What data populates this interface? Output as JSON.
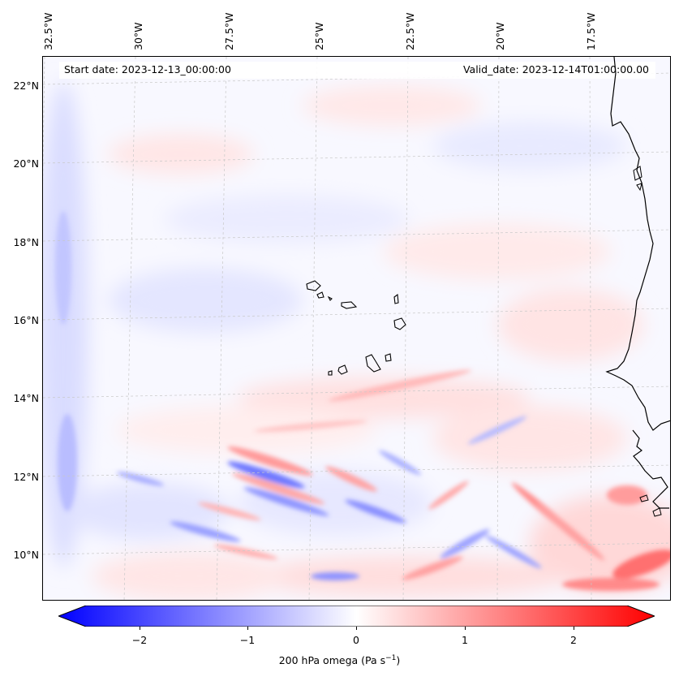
{
  "map": {
    "info": {
      "start_date": "Start date: 2023-12-13_00:00:00",
      "valid_date": "Valid_date: 2023-12-14T01:00:00.00"
    },
    "lon_labels": [
      "32.5°W",
      "30°W",
      "27.5°W",
      "25°W",
      "22.5°W",
      "20°W",
      "17.5°W"
    ],
    "lat_labels": [
      "22°N",
      "20°N",
      "18°N",
      "16°N",
      "14°N",
      "12°N",
      "10°N"
    ],
    "colorbar": {
      "ticks": [
        "−2",
        "−1",
        "0",
        "1",
        "2"
      ],
      "title": "200 hPa omega (Pa s",
      "title_sup": "−1",
      "title_end": ")",
      "colors": {
        "low": "#0000ff",
        "mid": "#ffffff",
        "high": "#ff0000"
      }
    },
    "layers": {
      "field": "omega-contour-field",
      "coastline": "coastline"
    }
  }
}
